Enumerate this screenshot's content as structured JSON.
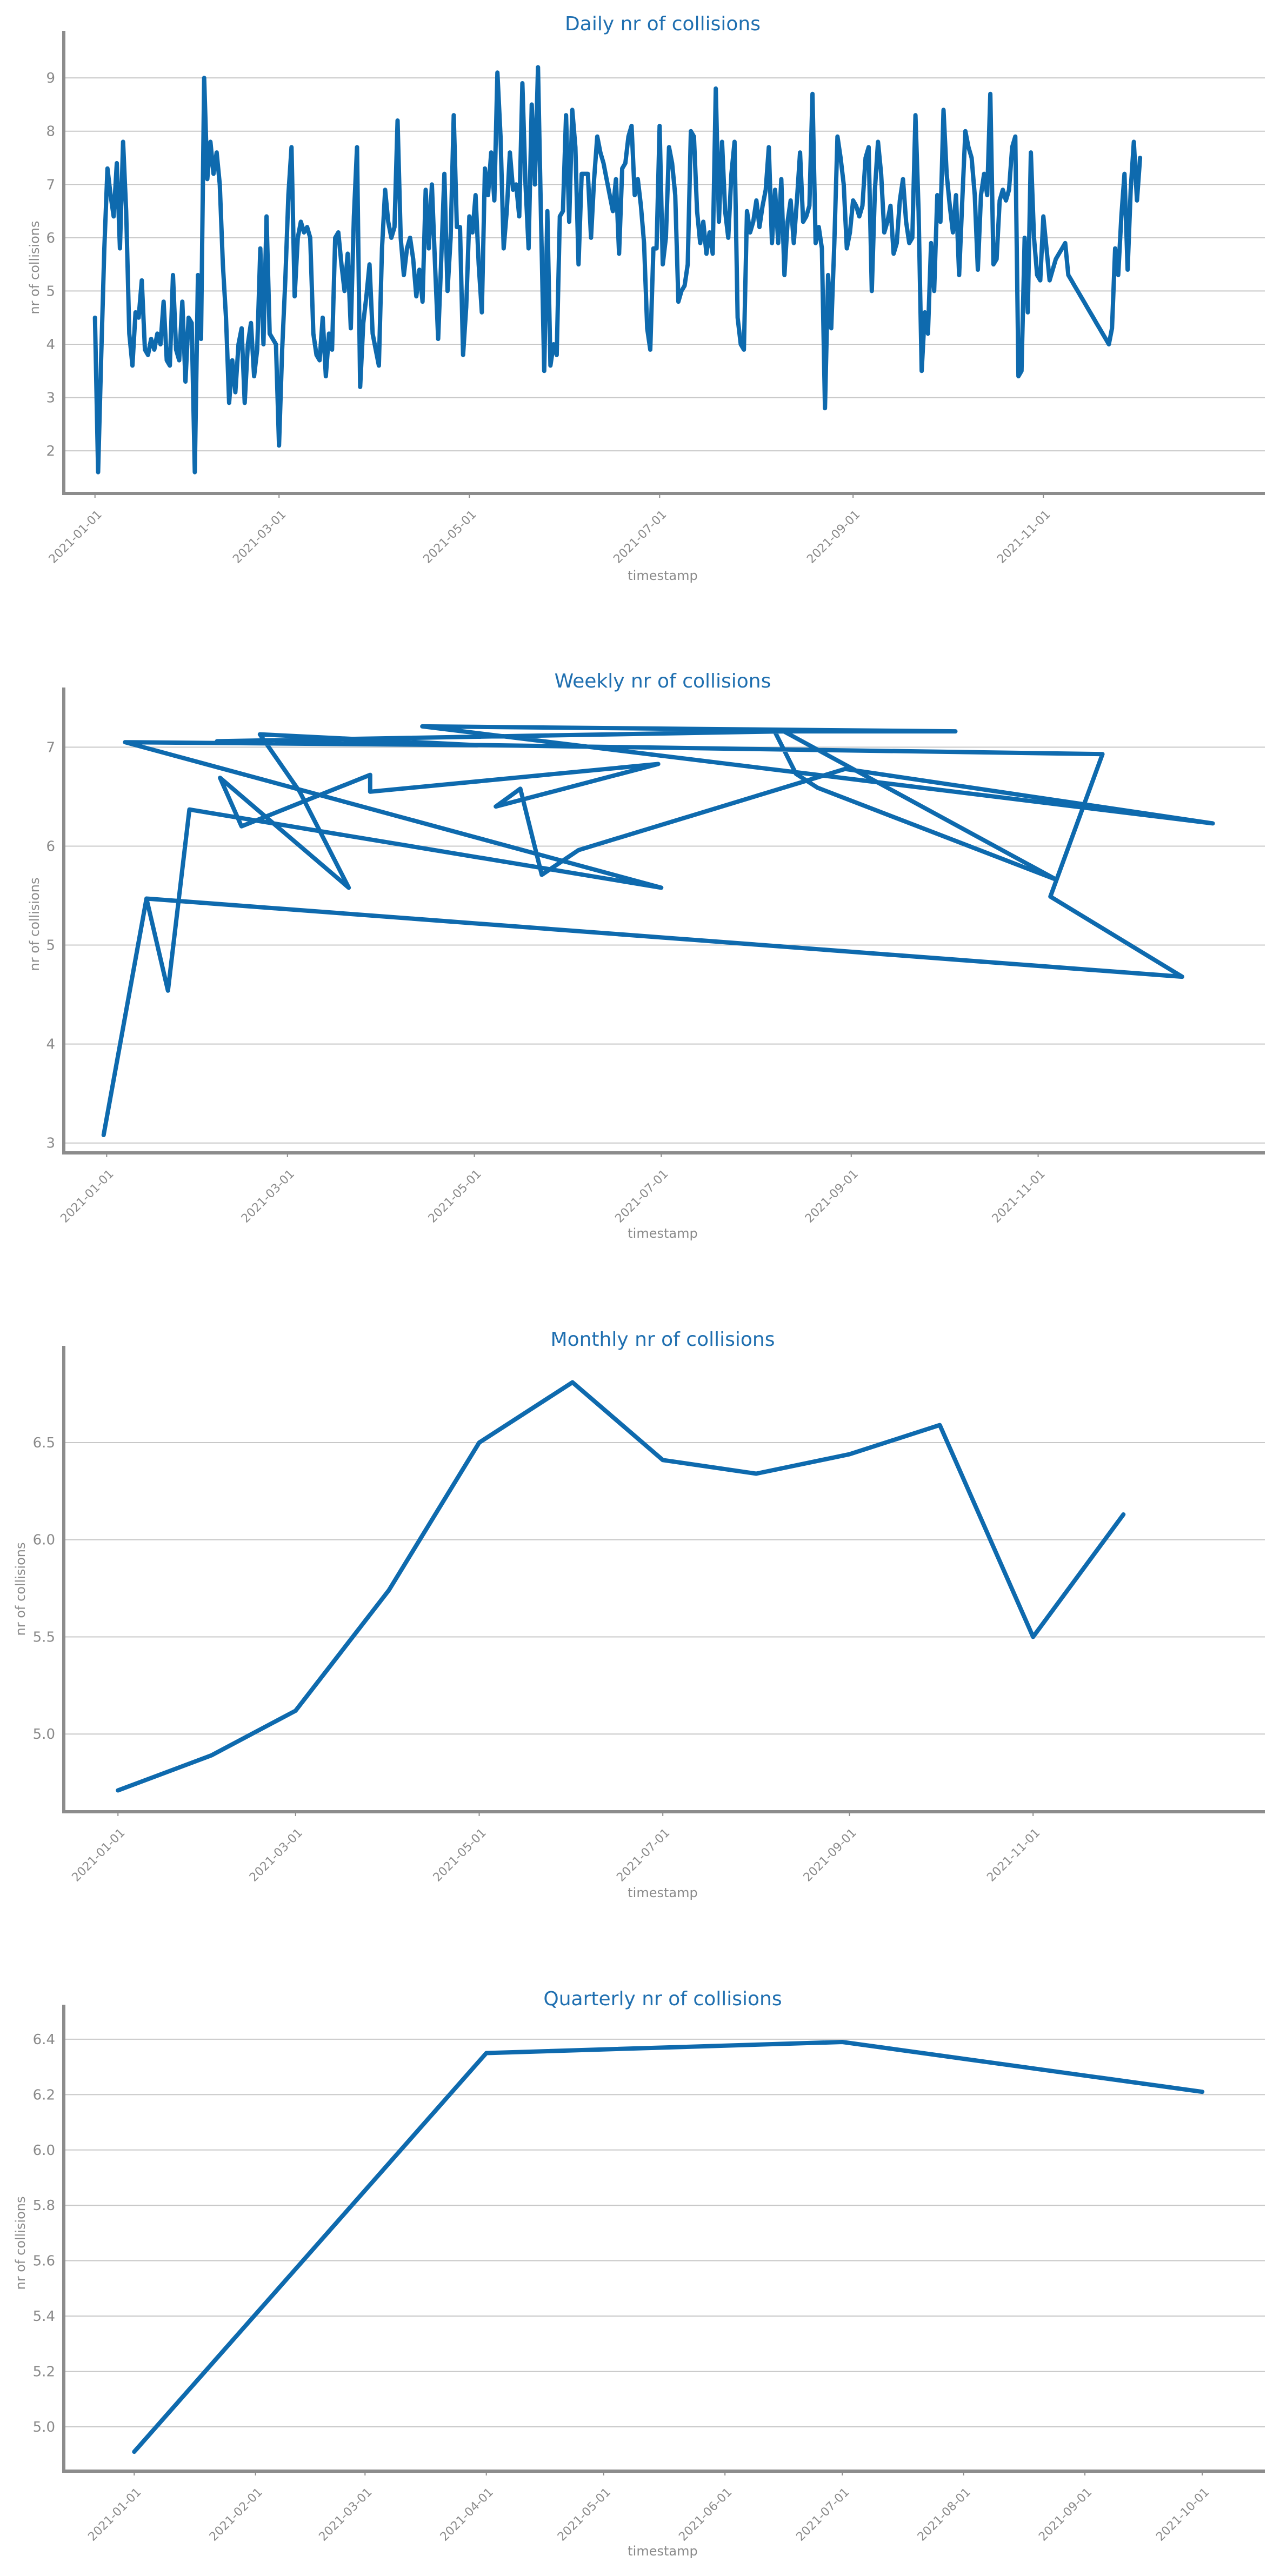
{
  "style": {
    "line_color": "#0e6aae",
    "title_color": "#1f6fb0",
    "axis_color": "#8c8c8c",
    "grid_color": "#c8c8c8",
    "text_color": "#8a8a8a"
  },
  "chart_data": [
    {
      "id": "daily",
      "type": "line",
      "title": "Daily nr of collisions",
      "xlabel": "timestamp",
      "ylabel": "nr of collisions",
      "x_type": "date",
      "xlim": [
        "2020-12-22",
        "2022-01-11"
      ],
      "xticks": [
        "2021-01-01",
        "2021-03-01",
        "2021-05-01",
        "2021-07-01",
        "2021-09-01",
        "2021-11-01"
      ],
      "ylim": [
        1.2,
        9.6
      ],
      "yticks": [
        2,
        3,
        4,
        5,
        6,
        7,
        8,
        9
      ],
      "grid": "horizontal",
      "start_date": "2021-01-01",
      "step_days": 1,
      "values": [
        4.5,
        1.6,
        3.8,
        5.8,
        7.3,
        6.8,
        6.4,
        7.4,
        5.8,
        7.8,
        6.5,
        4.2,
        3.6,
        4.6,
        4.5,
        5.2,
        3.9,
        3.8,
        4.1,
        3.9,
        4.2,
        4.0,
        4.8,
        3.7,
        3.6,
        5.3,
        3.9,
        3.7,
        4.8,
        3.3,
        4.5,
        4.4,
        1.6,
        5.3,
        4.1,
        9.0,
        7.1,
        7.8,
        7.2,
        7.6,
        7.0,
        5.5,
        4.5,
        2.9,
        3.7,
        3.1,
        4.0,
        4.3,
        2.9,
        4.0,
        4.4,
        3.4,
        3.9,
        5.8,
        4.0,
        6.4,
        4.2,
        4.1,
        4.0,
        2.1,
        3.9,
        5.2,
        6.8,
        7.7,
        4.9,
        6.0,
        6.3,
        6.1,
        6.2,
        6.0,
        4.2,
        3.8,
        3.7,
        4.5,
        3.4,
        4.2,
        3.9,
        6.0,
        6.1,
        5.5,
        5.0,
        5.7,
        4.3,
        6.4,
        7.7,
        3.2,
        4.4,
        4.9,
        5.5,
        4.2,
        3.9,
        3.6,
        5.8,
        6.9,
        6.3,
        6.0,
        6.2,
        8.2,
        6.0,
        5.3,
        5.8,
        6.0,
        5.6,
        4.9,
        5.4,
        4.8,
        6.9,
        5.8,
        7.0,
        5.5,
        4.1,
        5.6,
        7.2,
        5.0,
        6.0,
        8.3,
        6.2,
        6.2,
        3.8,
        4.7,
        6.4,
        6.1,
        6.8,
        5.5,
        4.6,
        7.3,
        6.8,
        7.6,
        6.7,
        9.1,
        7.9,
        5.8,
        6.5,
        7.6,
        6.9,
        7.0,
        6.4,
        8.9,
        7.0,
        5.8,
        8.5,
        7.0,
        9.2,
        6.3,
        3.5,
        6.5,
        3.6,
        4.0,
        3.8,
        6.4,
        6.5,
        8.3,
        6.3,
        8.4,
        7.7,
        5.5,
        7.2,
        7.2,
        7.2,
        6.0,
        7.1,
        7.9,
        7.6,
        7.4,
        7.1,
        6.8,
        6.5,
        7.1,
        5.7,
        7.3,
        7.4,
        7.9,
        8.1,
        6.8,
        7.1,
        6.6,
        5.9,
        4.3,
        3.9,
        5.8,
        5.8,
        8.1,
        5.5,
        6.0,
        7.7,
        7.4,
        6.8,
        4.8,
        5.0,
        5.1,
        5.5,
        8.0,
        7.9,
        6.5,
        5.9,
        6.3,
        5.7,
        6.1,
        5.7,
        8.8,
        6.3,
        7.8,
        6.5,
        6.0,
        7.2,
        7.8,
        4.5,
        4.0,
        3.9,
        6.5,
        6.1,
        6.3,
        6.7,
        6.2,
        6.6,
        6.9,
        7.7,
        5.9,
        6.9,
        5.9,
        7.1,
        5.3,
        6.3,
        6.7,
        5.9,
        6.7,
        7.6,
        6.3,
        6.4,
        6.6,
        8.7,
        5.9,
        6.2,
        5.8,
        2.8,
        5.3,
        4.3,
        5.9,
        7.9,
        7.5,
        7.0,
        5.8,
        6.1,
        6.7,
        6.6,
        6.4,
        6.6,
        7.5,
        7.7,
        5.0,
        6.9,
        7.8,
        7.2,
        6.1,
        6.3,
        6.6,
        5.7,
        5.9,
        6.7,
        7.1,
        6.3,
        5.9,
        6.0,
        8.3,
        6.5,
        3.5,
        4.6,
        4.2,
        5.9,
        5.0,
        6.8,
        6.3,
        8.4,
        7.2,
        6.6,
        6.1,
        6.8,
        5.3,
        6.7,
        8.0,
        7.7,
        7.5,
        6.8,
        5.4,
        6.8,
        7.2,
        6.8,
        8.7,
        5.5,
        5.6,
        6.7,
        6.9,
        6.7,
        6.9,
        7.7,
        7.9,
        3.4,
        3.5,
        6.0,
        4.6,
        7.6,
        6.0,
        5.3,
        5.2,
        6.4,
        5.8,
        5.2,
        5.4,
        5.6,
        5.7,
        5.8,
        5.9,
        5.3,
        5.2,
        5.1,
        5.0,
        4.9,
        4.8,
        4.7,
        4.6,
        4.5,
        4.4,
        4.3,
        4.2,
        4.1,
        4.0,
        4.3,
        5.8,
        5.3,
        6.4,
        7.2,
        5.4,
        6.9,
        7.8,
        6.7,
        7.5
      ]
    },
    {
      "id": "weekly",
      "type": "line",
      "title": "Weekly nr of collisions",
      "xlabel": "timestamp",
      "ylabel": "nr of collisions",
      "x_type": "date",
      "xlim": [
        "2020-12-18",
        "2022-01-14"
      ],
      "xticks": [
        "2021-01-01",
        "2021-03-01",
        "2021-05-01",
        "2021-07-01",
        "2021-09-01",
        "2021-11-01"
      ],
      "ylim": [
        2.9,
        7.45
      ],
      "yticks": [
        3,
        4,
        5,
        6,
        7
      ],
      "grid": "horizontal",
      "points": [
        [
          "2020-12-31",
          3.08
        ],
        [
          "2021-01-14",
          5.47
        ],
        [
          "2021-01-21",
          4.54
        ],
        [
          "2021-01-28",
          6.37
        ],
        [
          "2021-07-01",
          5.58
        ],
        [
          "2021-01-07",
          7.05
        ],
        [
          "2021-05-02",
          7.02
        ],
        [
          "2021-02-20",
          7.13
        ],
        [
          "2021-03-05",
          6.55
        ],
        [
          "2021-03-21",
          5.58
        ],
        [
          "2021-02-07",
          6.69
        ],
        [
          "2021-02-14",
          6.2
        ],
        [
          "2021-03-28",
          6.72
        ],
        [
          "2021-03-28",
          6.55
        ],
        [
          "2021-06-30",
          6.83
        ],
        [
          "2021-05-08",
          6.4
        ],
        [
          "2021-05-16",
          6.58
        ],
        [
          "2021-05-23",
          5.71
        ],
        [
          "2021-06-04",
          5.96
        ],
        [
          "2021-08-30",
          6.78
        ],
        [
          "2021-12-28",
          6.23
        ],
        [
          "2021-04-14",
          7.21
        ],
        [
          "2021-10-05",
          7.16
        ],
        [
          "2021-08-07",
          7.16
        ],
        [
          "2021-08-14",
          6.73
        ],
        [
          "2021-08-21",
          6.59
        ],
        [
          "2021-11-07",
          5.66
        ],
        [
          "2021-08-10",
          7.16
        ],
        [
          "2021-02-06",
          7.06
        ],
        [
          "2021-11-22",
          6.93
        ],
        [
          "2021-11-05",
          5.49
        ],
        [
          "2021-12-18",
          4.68
        ],
        [
          "2021-01-14",
          5.47
        ]
      ]
    },
    {
      "id": "monthly",
      "type": "line",
      "title": "Monthly nr of collisions",
      "xlabel": "timestamp",
      "ylabel": "nr of collisions",
      "x_type": "date",
      "xlim": [
        "2020-12-14",
        "2022-01-17"
      ],
      "xticks": [
        "2021-01-01",
        "2021-03-01",
        "2021-05-01",
        "2021-07-01",
        "2021-09-01",
        "2021-11-01"
      ],
      "ylim": [
        4.6,
        6.92
      ],
      "yticks": [
        5.0,
        5.5,
        6.0,
        6.5
      ],
      "grid": "horizontal",
      "points": [
        [
          "2021-01-01",
          4.71
        ],
        [
          "2021-02-01",
          4.89
        ],
        [
          "2021-03-01",
          5.12
        ],
        [
          "2021-04-01",
          5.74
        ],
        [
          "2021-05-01",
          6.5
        ],
        [
          "2021-06-01",
          6.81
        ],
        [
          "2021-07-01",
          6.41
        ],
        [
          "2021-08-01",
          6.34
        ],
        [
          "2021-09-01",
          6.44
        ],
        [
          "2021-10-01",
          6.59
        ],
        [
          "2021-11-01",
          5.5
        ],
        [
          "2021-12-01",
          6.13
        ]
      ]
    },
    {
      "id": "quarterly",
      "type": "line",
      "title": "Quarterly nr of collisions",
      "xlabel": "timestamp",
      "ylabel": "nr of collisions",
      "x_type": "date",
      "xlim": [
        "2020-12-14",
        "2021-10-17"
      ],
      "xticks": [
        "2021-01-01",
        "2021-02-01",
        "2021-03-01",
        "2021-04-01",
        "2021-05-01",
        "2021-06-01",
        "2021-07-01",
        "2021-08-01",
        "2021-09-01",
        "2021-10-01"
      ],
      "ylim": [
        4.84,
        6.47
      ],
      "yticks": [
        5.0,
        5.2,
        5.4,
        5.6,
        5.8,
        6.0,
        6.2,
        6.4
      ],
      "grid": "horizontal",
      "points": [
        [
          "2021-01-01",
          4.91
        ],
        [
          "2021-04-01",
          6.35
        ],
        [
          "2021-07-01",
          6.39
        ],
        [
          "2021-10-01",
          6.21
        ]
      ]
    }
  ]
}
